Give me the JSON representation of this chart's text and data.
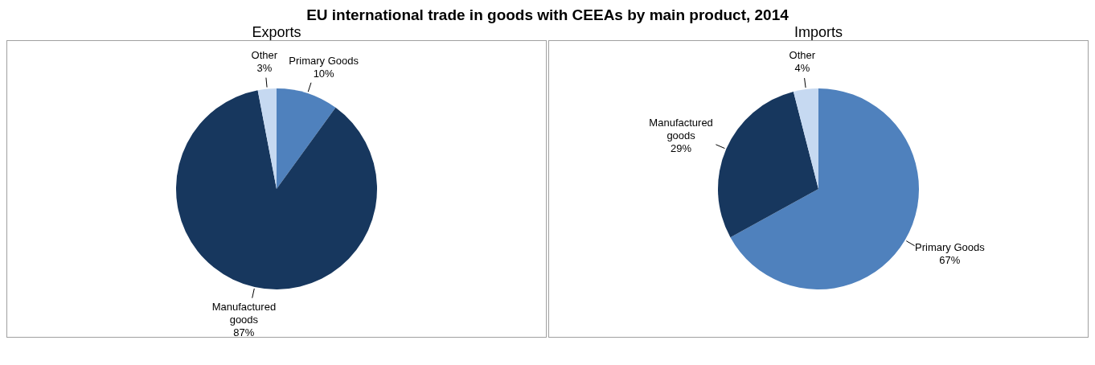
{
  "chart_data": [
    {
      "type": "pie",
      "title": "EU international trade in goods with CEEAs by main product, 2014",
      "subtitle": "Exports",
      "categories": [
        "Primary Goods",
        "Manufactured goods",
        "Other"
      ],
      "values": [
        10,
        87,
        3
      ],
      "value_labels": [
        "10%",
        "87%",
        "3%"
      ],
      "colors": [
        "#4f81bd",
        "#17375e",
        "#c6d9f1"
      ]
    },
    {
      "type": "pie",
      "subtitle": "Imports",
      "categories": [
        "Primary Goods",
        "Manufactured goods",
        "Other"
      ],
      "values": [
        67,
        29,
        4
      ],
      "value_labels": [
        "67%",
        "29%",
        "4%"
      ],
      "colors": [
        "#4f81bd",
        "#17375e",
        "#c6d9f1"
      ]
    }
  ]
}
